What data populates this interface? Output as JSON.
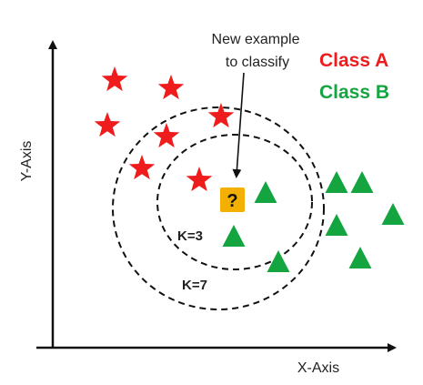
{
  "axes": {
    "x_label": "X-Axis",
    "y_label": "Y-Axis"
  },
  "legend": {
    "class_a": {
      "label": "Class A",
      "color": "#ee1c1c"
    },
    "class_b": {
      "label": "Class B",
      "color": "#14a541"
    }
  },
  "annotation": {
    "line1": "New example",
    "line2": "to classify"
  },
  "query_point": {
    "symbol": "?",
    "color": "#f4b000"
  },
  "neighborhoods": {
    "inner_label": "K=3",
    "outer_label": "K=7"
  },
  "icons": {
    "class_a_marker": "star-icon",
    "class_b_marker": "triangle-icon",
    "query_marker": "question-square-icon"
  }
}
